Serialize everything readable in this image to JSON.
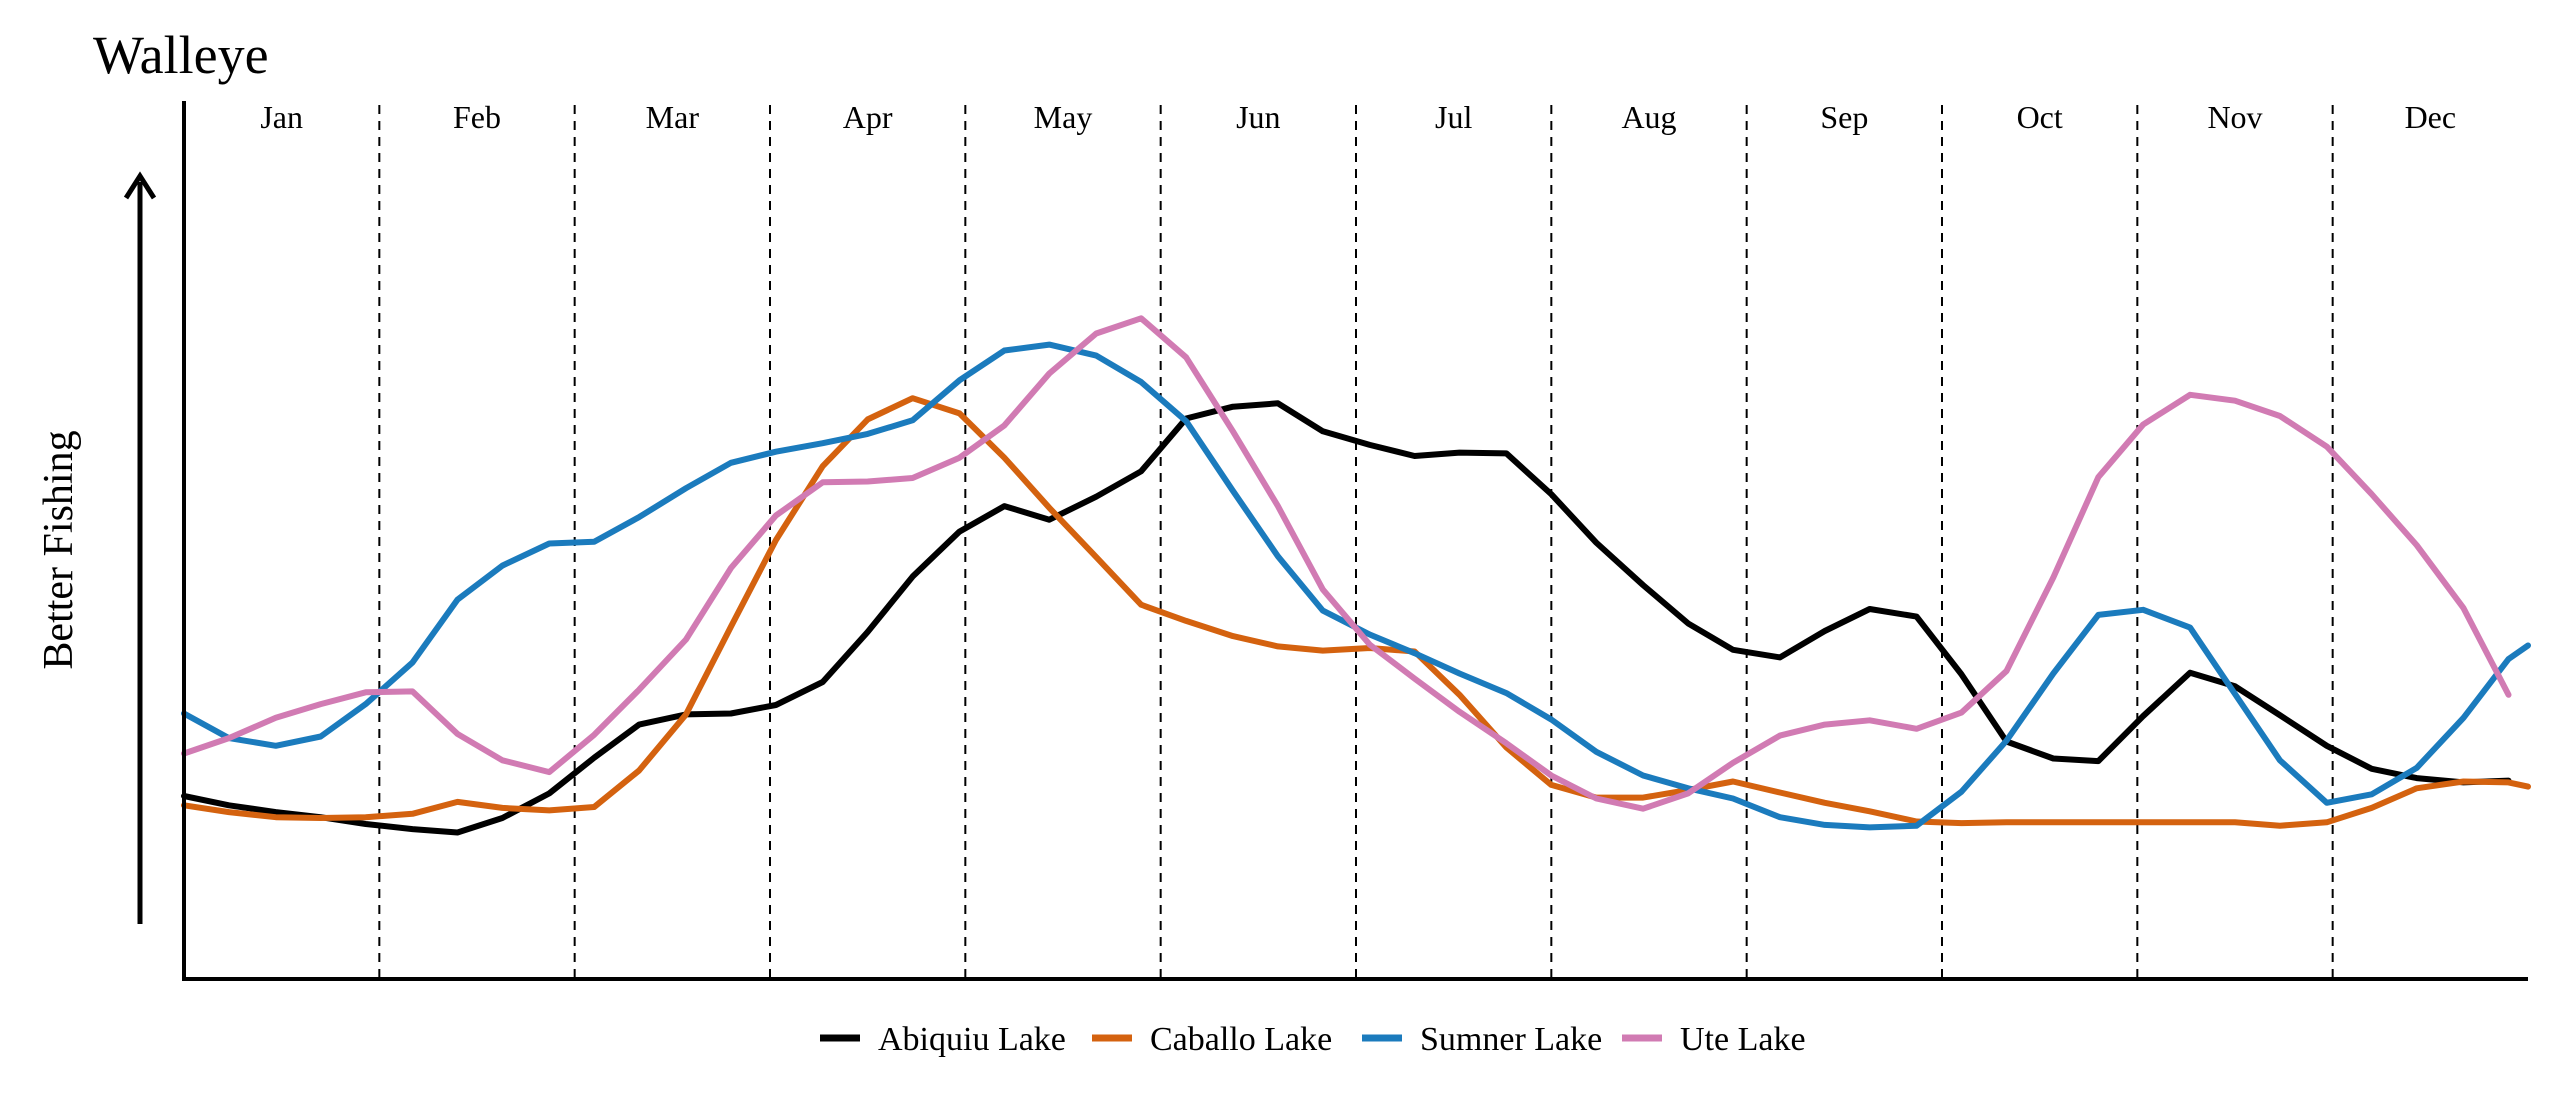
{
  "chart_data": {
    "type": "line",
    "title": "Walleye",
    "xlabel": "",
    "ylabel": "Better Fishing",
    "months": [
      "Jan",
      "Feb",
      "Mar",
      "Apr",
      "May",
      "Jun",
      "Jul",
      "Aug",
      "Sep",
      "Oct",
      "Nov",
      "Dec"
    ],
    "xlim": [
      0,
      12
    ],
    "ylim": [
      0,
      100
    ],
    "grid": "vertical dashed month dividers",
    "legend_position": "bottom-center",
    "series": [
      {
        "name": "Abiquiu Lake",
        "color": "#000000",
        "points": [
          [
            0.0,
            19.3
          ],
          [
            0.23,
            18.2
          ],
          [
            0.47,
            17.4
          ],
          [
            0.7,
            16.8
          ],
          [
            0.93,
            16.0
          ],
          [
            1.17,
            15.4
          ],
          [
            1.4,
            15.0
          ],
          [
            1.63,
            16.7
          ],
          [
            1.87,
            19.6
          ],
          [
            2.1,
            23.8
          ],
          [
            2.33,
            27.7
          ],
          [
            2.57,
            28.9
          ],
          [
            2.8,
            29.0
          ],
          [
            3.03,
            30.0
          ],
          [
            3.27,
            32.7
          ],
          [
            3.5,
            38.6
          ],
          [
            3.73,
            45.1
          ],
          [
            3.97,
            50.4
          ],
          [
            4.2,
            53.4
          ],
          [
            4.43,
            51.8
          ],
          [
            4.67,
            54.5
          ],
          [
            4.9,
            57.5
          ],
          [
            5.13,
            63.7
          ],
          [
            5.37,
            65.1
          ],
          [
            5.6,
            65.5
          ],
          [
            5.83,
            62.2
          ],
          [
            6.07,
            60.6
          ],
          [
            6.3,
            59.3
          ],
          [
            6.53,
            59.7
          ],
          [
            6.77,
            59.6
          ],
          [
            7.0,
            54.8
          ],
          [
            7.23,
            49.1
          ],
          [
            7.47,
            44.1
          ],
          [
            7.7,
            39.6
          ],
          [
            7.93,
            36.5
          ],
          [
            8.17,
            35.6
          ],
          [
            8.4,
            38.7
          ],
          [
            8.63,
            41.3
          ],
          [
            8.87,
            40.4
          ],
          [
            9.1,
            33.6
          ],
          [
            9.33,
            25.7
          ],
          [
            9.57,
            23.7
          ],
          [
            9.8,
            23.4
          ],
          [
            10.03,
            28.7
          ],
          [
            10.27,
            33.8
          ],
          [
            10.5,
            32.2
          ],
          [
            10.73,
            28.8
          ],
          [
            10.97,
            25.2
          ],
          [
            11.2,
            22.5
          ],
          [
            11.43,
            21.4
          ],
          [
            11.67,
            20.9
          ],
          [
            11.9,
            21.1
          ]
        ]
      },
      {
        "name": "Caballo Lake",
        "color": "#D4620F",
        "points": [
          [
            0.0,
            18.2
          ],
          [
            0.23,
            17.4
          ],
          [
            0.47,
            16.8
          ],
          [
            0.7,
            16.7
          ],
          [
            0.93,
            16.8
          ],
          [
            1.17,
            17.2
          ],
          [
            1.4,
            18.6
          ],
          [
            1.63,
            17.9
          ],
          [
            1.87,
            17.6
          ],
          [
            2.1,
            18.0
          ],
          [
            2.33,
            22.3
          ],
          [
            2.57,
            28.9
          ],
          [
            2.8,
            39.2
          ],
          [
            3.03,
            49.4
          ],
          [
            3.27,
            58.1
          ],
          [
            3.5,
            63.6
          ],
          [
            3.73,
            66.1
          ],
          [
            3.97,
            64.3
          ],
          [
            4.2,
            59.1
          ],
          [
            4.43,
            53.2
          ],
          [
            4.67,
            47.4
          ],
          [
            4.9,
            41.8
          ],
          [
            5.13,
            39.9
          ],
          [
            5.37,
            38.1
          ],
          [
            5.6,
            36.9
          ],
          [
            5.83,
            36.4
          ],
          [
            6.07,
            36.7
          ],
          [
            6.3,
            36.3
          ],
          [
            6.53,
            31.2
          ],
          [
            6.77,
            25.0
          ],
          [
            7.0,
            20.6
          ],
          [
            7.23,
            19.1
          ],
          [
            7.47,
            19.1
          ],
          [
            7.7,
            20.0
          ],
          [
            7.93,
            21.0
          ],
          [
            8.17,
            19.7
          ],
          [
            8.4,
            18.5
          ],
          [
            8.63,
            17.5
          ],
          [
            8.87,
            16.3
          ],
          [
            9.1,
            16.1
          ],
          [
            9.33,
            16.2
          ],
          [
            9.57,
            16.2
          ],
          [
            9.8,
            16.2
          ],
          [
            10.03,
            16.2
          ],
          [
            10.27,
            16.2
          ],
          [
            10.5,
            16.2
          ],
          [
            10.73,
            15.8
          ],
          [
            10.97,
            16.2
          ],
          [
            11.2,
            17.9
          ],
          [
            11.43,
            20.2
          ],
          [
            11.67,
            21.0
          ],
          [
            11.9,
            20.9
          ],
          [
            12.0,
            20.4
          ]
        ]
      },
      {
        "name": "Sumner Lake",
        "color": "#1B7BBD",
        "points": [
          [
            0.0,
            29.0
          ],
          [
            0.23,
            26.1
          ],
          [
            0.47,
            25.2
          ],
          [
            0.7,
            26.3
          ],
          [
            0.93,
            30.1
          ],
          [
            1.17,
            35.0
          ],
          [
            1.4,
            42.4
          ],
          [
            1.63,
            46.4
          ],
          [
            1.87,
            49.0
          ],
          [
            2.1,
            49.2
          ],
          [
            2.33,
            52.1
          ],
          [
            2.57,
            55.5
          ],
          [
            2.8,
            58.5
          ],
          [
            3.03,
            59.8
          ],
          [
            3.27,
            60.8
          ],
          [
            3.5,
            61.9
          ],
          [
            3.73,
            63.5
          ],
          [
            3.97,
            68.2
          ],
          [
            4.2,
            71.7
          ],
          [
            4.43,
            72.4
          ],
          [
            4.67,
            71.1
          ],
          [
            4.9,
            68.0
          ],
          [
            5.13,
            63.4
          ],
          [
            5.37,
            55.2
          ],
          [
            5.6,
            47.5
          ],
          [
            5.83,
            41.1
          ],
          [
            6.07,
            38.3
          ],
          [
            6.3,
            36.1
          ],
          [
            6.53,
            33.7
          ],
          [
            6.77,
            31.4
          ],
          [
            7.0,
            28.3
          ],
          [
            7.23,
            24.5
          ],
          [
            7.47,
            21.7
          ],
          [
            7.7,
            20.2
          ],
          [
            7.93,
            19.0
          ],
          [
            8.17,
            16.8
          ],
          [
            8.4,
            15.9
          ],
          [
            8.63,
            15.6
          ],
          [
            8.87,
            15.8
          ],
          [
            9.1,
            19.8
          ],
          [
            9.33,
            25.8
          ],
          [
            9.57,
            33.7
          ],
          [
            9.8,
            40.6
          ],
          [
            10.03,
            41.2
          ],
          [
            10.27,
            39.1
          ],
          [
            10.5,
            31.3
          ],
          [
            10.73,
            23.5
          ],
          [
            10.97,
            18.5
          ],
          [
            11.2,
            19.5
          ],
          [
            11.43,
            22.6
          ],
          [
            11.67,
            28.5
          ],
          [
            11.9,
            35.4
          ],
          [
            12.0,
            37.0
          ]
        ]
      },
      {
        "name": "Ute Lake",
        "color": "#D17BB3",
        "points": [
          [
            0.0,
            24.3
          ],
          [
            0.23,
            26.1
          ],
          [
            0.47,
            28.5
          ],
          [
            0.7,
            30.1
          ],
          [
            0.93,
            31.5
          ],
          [
            1.17,
            31.6
          ],
          [
            1.4,
            26.6
          ],
          [
            1.63,
            23.5
          ],
          [
            1.87,
            22.1
          ],
          [
            2.1,
            26.5
          ],
          [
            2.33,
            31.8
          ],
          [
            2.57,
            37.7
          ],
          [
            2.8,
            46.1
          ],
          [
            3.03,
            52.3
          ],
          [
            3.27,
            56.2
          ],
          [
            3.5,
            56.3
          ],
          [
            3.73,
            56.7
          ],
          [
            3.97,
            59.1
          ],
          [
            4.2,
            62.9
          ],
          [
            4.43,
            69.0
          ],
          [
            4.67,
            73.7
          ],
          [
            4.9,
            75.5
          ],
          [
            5.13,
            70.9
          ],
          [
            5.37,
            62.2
          ],
          [
            5.6,
            53.4
          ],
          [
            5.83,
            43.6
          ],
          [
            6.07,
            37.1
          ],
          [
            6.3,
            33.1
          ],
          [
            6.53,
            29.2
          ],
          [
            6.77,
            25.5
          ],
          [
            7.0,
            21.7
          ],
          [
            7.23,
            19.0
          ],
          [
            7.47,
            17.8
          ],
          [
            7.7,
            19.6
          ],
          [
            7.93,
            23.2
          ],
          [
            8.17,
            26.4
          ],
          [
            8.4,
            27.7
          ],
          [
            8.63,
            28.2
          ],
          [
            8.87,
            27.2
          ],
          [
            9.1,
            29.1
          ],
          [
            9.33,
            34.0
          ],
          [
            9.57,
            45.0
          ],
          [
            9.8,
            56.8
          ],
          [
            10.03,
            63.0
          ],
          [
            10.27,
            66.5
          ],
          [
            10.5,
            65.8
          ],
          [
            10.73,
            64.0
          ],
          [
            10.97,
            60.4
          ],
          [
            11.2,
            54.8
          ],
          [
            11.43,
            48.8
          ],
          [
            11.67,
            41.4
          ],
          [
            11.9,
            31.2
          ]
        ]
      }
    ]
  }
}
